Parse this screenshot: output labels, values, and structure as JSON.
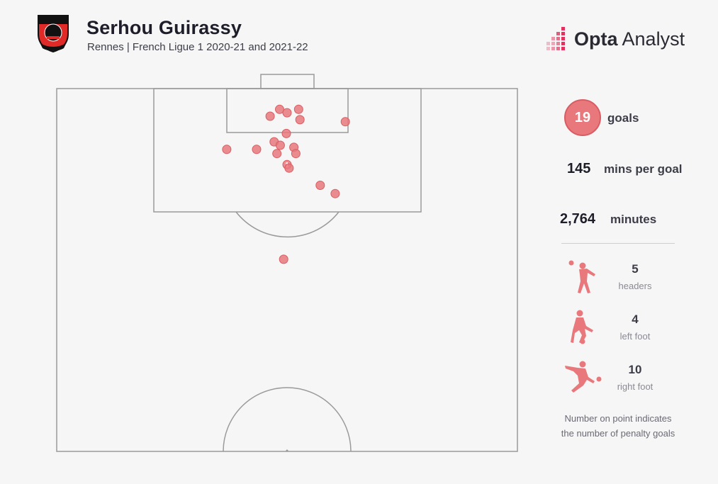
{
  "header": {
    "player_name": "Serhou Guirassy",
    "subtitle": "Rennes | French Ligue 1 2020-21 and 2021-22",
    "brand_name_bold": "Opta",
    "brand_name_light": " Analyst",
    "crest_icon": "stade-rennais-crest-icon"
  },
  "stats": {
    "goals_value": "19",
    "goals_label": "goals",
    "mins_per_goal_value": "145",
    "mins_per_goal_label": "mins per goal",
    "minutes_value": "2,764",
    "minutes_label": "minutes"
  },
  "goal_types": [
    {
      "value": "5",
      "label": "headers",
      "icon": "header-player-icon"
    },
    {
      "value": "4",
      "label": "left foot",
      "icon": "left-foot-player-icon"
    },
    {
      "value": "10",
      "label": "right foot",
      "icon": "right-foot-player-icon"
    }
  ],
  "note": {
    "line1": "Number on point indicates",
    "line2": "the number of penalty goals"
  },
  "colors": {
    "accent": "#e8787c",
    "accent_stroke": "#d85d63",
    "pitch_line": "#9a9a9a",
    "background": "#f6f6f6"
  },
  "chart_data": {
    "type": "scatter",
    "description_units": "pitch coordinates in metres: x across pitch width (0-68), y distance from goal line (0-52.5, half pitch)",
    "xlim": [
      0,
      68
    ],
    "ylim": [
      0,
      52.5
    ],
    "points": [
      {
        "x": 32.9,
        "y": 3.0,
        "penalty": 0
      },
      {
        "x": 35.7,
        "y": 3.0,
        "penalty": 0
      },
      {
        "x": 34.0,
        "y": 3.5,
        "penalty": 0
      },
      {
        "x": 31.5,
        "y": 4.0,
        "penalty": 0
      },
      {
        "x": 35.9,
        "y": 4.5,
        "penalty": 0
      },
      {
        "x": 42.6,
        "y": 4.8,
        "penalty": 0
      },
      {
        "x": 33.9,
        "y": 6.5,
        "penalty": 0
      },
      {
        "x": 32.1,
        "y": 7.7,
        "penalty": 0
      },
      {
        "x": 33.0,
        "y": 8.2,
        "penalty": 0
      },
      {
        "x": 35.0,
        "y": 8.5,
        "penalty": 0
      },
      {
        "x": 25.1,
        "y": 8.8,
        "penalty": 0
      },
      {
        "x": 29.5,
        "y": 8.8,
        "penalty": 0
      },
      {
        "x": 32.5,
        "y": 9.4,
        "penalty": 0
      },
      {
        "x": 35.3,
        "y": 9.4,
        "penalty": 0
      },
      {
        "x": 34.0,
        "y": 11.0,
        "penalty": 1
      },
      {
        "x": 34.3,
        "y": 11.5,
        "penalty": 0
      },
      {
        "x": 38.9,
        "y": 14.0,
        "penalty": 0
      },
      {
        "x": 41.1,
        "y": 15.2,
        "penalty": 0
      },
      {
        "x": 33.5,
        "y": 24.7,
        "penalty": 0
      }
    ]
  }
}
